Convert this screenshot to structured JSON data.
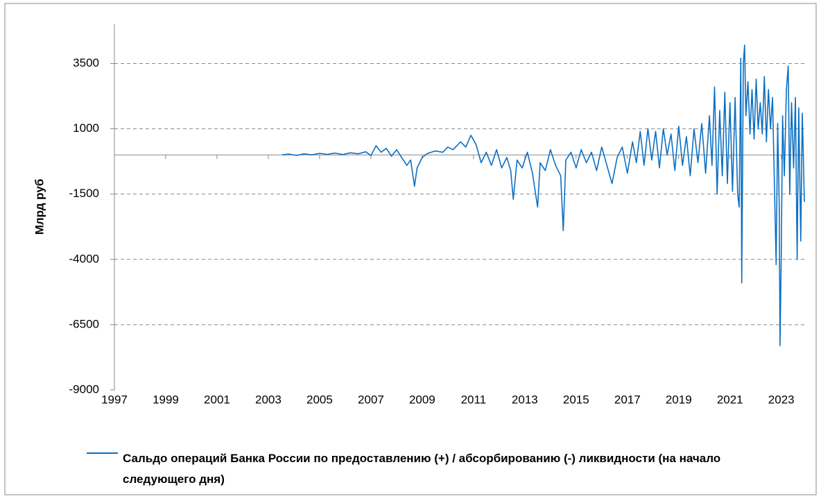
{
  "chart_data": {
    "type": "line",
    "ylabel": "Млрд руб",
    "xlim": [
      1997,
      2023.9
    ],
    "xticks": [
      1997,
      1999,
      2001,
      2003,
      2005,
      2007,
      2009,
      2011,
      2013,
      2015,
      2017,
      2019,
      2021,
      2023
    ],
    "ylim": [
      -9000,
      5000
    ],
    "yticks": [
      -9000,
      -6500,
      -4000,
      -1500,
      1000,
      3500
    ],
    "grid": true,
    "x": [
      2003.54,
      2003.8,
      2004.1,
      2004.4,
      2004.7,
      2005.0,
      2005.3,
      2005.6,
      2005.9,
      2006.2,
      2006.5,
      2006.8,
      2007.0,
      2007.2,
      2007.4,
      2007.6,
      2007.8,
      2008.0,
      2008.2,
      2008.4,
      2008.55,
      2008.7,
      2008.8,
      2009.0,
      2009.2,
      2009.5,
      2009.8,
      2010.0,
      2010.2,
      2010.5,
      2010.7,
      2010.9,
      2011.1,
      2011.3,
      2011.5,
      2011.7,
      2011.9,
      2012.1,
      2012.3,
      2012.45,
      2012.55,
      2012.7,
      2012.9,
      2013.1,
      2013.3,
      2013.5,
      2013.6,
      2013.8,
      2014.0,
      2014.2,
      2014.4,
      2014.5,
      2014.6,
      2014.8,
      2015.0,
      2015.2,
      2015.4,
      2015.6,
      2015.8,
      2016.0,
      2016.2,
      2016.4,
      2016.6,
      2016.8,
      2017.0,
      2017.2,
      2017.35,
      2017.5,
      2017.65,
      2017.8,
      2017.95,
      2018.1,
      2018.25,
      2018.4,
      2018.55,
      2018.7,
      2018.85,
      2019.0,
      2019.15,
      2019.3,
      2019.45,
      2019.6,
      2019.75,
      2019.9,
      2020.05,
      2020.2,
      2020.3,
      2020.4,
      2020.5,
      2020.6,
      2020.7,
      2020.8,
      2020.9,
      2021.0,
      2021.1,
      2021.2,
      2021.3,
      2021.36,
      2021.42,
      2021.46,
      2021.52,
      2021.57,
      2021.62,
      2021.7,
      2021.78,
      2021.86,
      2021.94,
      2022.02,
      2022.1,
      2022.18,
      2022.26,
      2022.34,
      2022.42,
      2022.5,
      2022.58,
      2022.66,
      2022.74,
      2022.8,
      2022.86,
      2022.92,
      2022.95,
      2023.0,
      2023.05,
      2023.12,
      2023.2,
      2023.27,
      2023.33,
      2023.4,
      2023.48,
      2023.55,
      2023.62,
      2023.68,
      2023.76,
      2023.82,
      2023.9
    ],
    "series": [
      {
        "name": "Сальдо операций Банка России по предоставлению (+) / абсорбированию (-) ликвидности (на начало следующего дня)",
        "color": "#0b6fc2",
        "values": [
          0,
          30,
          -20,
          40,
          0,
          60,
          20,
          70,
          10,
          80,
          40,
          120,
          -30,
          350,
          100,
          250,
          -50,
          200,
          -100,
          -400,
          -200,
          -1200,
          -500,
          -100,
          50,
          150,
          100,
          300,
          200,
          500,
          300,
          750,
          400,
          -300,
          100,
          -400,
          200,
          -500,
          -100,
          -600,
          -1700,
          -200,
          -500,
          100,
          -700,
          -2000,
          -300,
          -600,
          200,
          -400,
          -800,
          -2900,
          -200,
          100,
          -500,
          200,
          -300,
          100,
          -600,
          300,
          -400,
          -1100,
          -100,
          300,
          -700,
          500,
          -300,
          900,
          -400,
          1000,
          -200,
          900,
          -500,
          1000,
          0,
          800,
          -600,
          1100,
          -400,
          700,
          -800,
          1000,
          -300,
          1200,
          -700,
          1500,
          -400,
          2600,
          -1500,
          1700,
          -800,
          2400,
          -1100,
          2000,
          -1400,
          2200,
          -1500,
          -2000,
          3700,
          -4900,
          3500,
          4200,
          1500,
          2800,
          800,
          2500,
          600,
          2900,
          1000,
          2000,
          800,
          3000,
          500,
          2500,
          1000,
          2200,
          -1500,
          -4200,
          1200,
          -2000,
          -7300,
          -3800,
          1500,
          -800,
          2500,
          3400,
          -1500,
          2000,
          -500,
          2200,
          -4000,
          1800,
          -3300,
          1600,
          -1800
        ]
      }
    ]
  }
}
